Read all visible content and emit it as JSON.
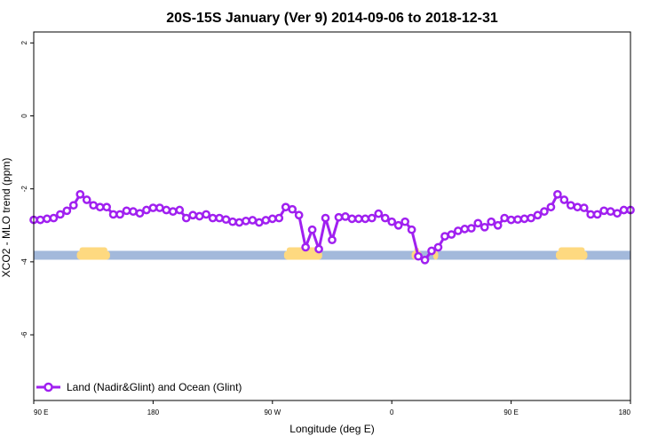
{
  "chart_data": {
    "type": "line",
    "title": "20S-15S January (Ver 9)   2014-09-06 to 2018-12-31",
    "xlabel": "Longitude (deg E)",
    "ylabel": "XCO2 - MLO trend (ppm)",
    "xlim": [
      90,
      450
    ],
    "ylim": [
      -7.8,
      2.3
    ],
    "x_ticks": [
      {
        "value": 90,
        "label": "90 E"
      },
      {
        "value": 162,
        "label": "180"
      },
      {
        "value": 234,
        "label": "90 W"
      },
      {
        "value": 306,
        "label": "0"
      },
      {
        "value": 378,
        "label": "90 E"
      },
      {
        "value": 450,
        "label": "180"
      }
    ],
    "y_ticks": [
      {
        "value": 2,
        "label": "2"
      },
      {
        "value": 0,
        "label": "0"
      },
      {
        "value": -2,
        "label": "-2"
      },
      {
        "value": -4,
        "label": "-4"
      },
      {
        "value": -6,
        "label": "-6"
      }
    ],
    "series": [
      {
        "name": "Land (Nadir&Glint) and Ocean (Glint)",
        "color": "#a020f0",
        "x": [
          90,
          94,
          98,
          102,
          106,
          110,
          114,
          118,
          122,
          126,
          130,
          134,
          138,
          142,
          146,
          150,
          154,
          158,
          162,
          166,
          170,
          174,
          178,
          182,
          186,
          190,
          194,
          198,
          202,
          206,
          210,
          214,
          218,
          222,
          226,
          230,
          234,
          238,
          242,
          246,
          250,
          254,
          258,
          262,
          266,
          270,
          274,
          278,
          282,
          286,
          290,
          294,
          298,
          302,
          306,
          310,
          314,
          318,
          322,
          326,
          330,
          334,
          338,
          342,
          346,
          350,
          354,
          358,
          362,
          366,
          370,
          374,
          378,
          382,
          386,
          390,
          394,
          398,
          402,
          406,
          410,
          414,
          418,
          422,
          426,
          430,
          434,
          438,
          442,
          446,
          450
        ],
        "y": [
          -2.85,
          -2.85,
          -2.82,
          -2.8,
          -2.7,
          -2.6,
          -2.45,
          -2.15,
          -2.3,
          -2.45,
          -2.5,
          -2.5,
          -2.7,
          -2.7,
          -2.6,
          -2.62,
          -2.67,
          -2.58,
          -2.52,
          -2.52,
          -2.58,
          -2.62,
          -2.58,
          -2.8,
          -2.72,
          -2.75,
          -2.7,
          -2.8,
          -2.8,
          -2.84,
          -2.9,
          -2.92,
          -2.88,
          -2.86,
          -2.92,
          -2.86,
          -2.82,
          -2.8,
          -2.5,
          -2.56,
          -2.72,
          -3.6,
          -3.12,
          -3.65,
          -2.8,
          -3.4,
          -2.78,
          -2.76,
          -2.82,
          -2.82,
          -2.82,
          -2.8,
          -2.68,
          -2.8,
          -2.9,
          -3.0,
          -2.9,
          -3.12,
          -3.85,
          -3.95,
          -3.7,
          -3.6,
          -3.3,
          -3.25,
          -3.15,
          -3.1,
          -3.08,
          -2.94,
          -3.05,
          -2.9,
          -3.0,
          -2.8,
          -2.85,
          -2.84,
          -2.82,
          -2.8,
          -2.72,
          -2.62,
          -2.5,
          -2.15,
          -2.3,
          -2.45,
          -2.5,
          -2.52,
          -2.7,
          -2.7,
          -2.6,
          -2.62,
          -2.67,
          -2.58,
          -2.58
        ]
      }
    ],
    "surface_band": {
      "y": -3.82,
      "ocean_color": "#a3b9db",
      "land_color": "#fed980",
      "land_ranges": [
        [
          116,
          136
        ],
        [
          241,
          264
        ],
        [
          318,
          324
        ],
        [
          331,
          334
        ],
        [
          405,
          424
        ]
      ]
    },
    "legend": {
      "position": "bottom-left"
    },
    "grid": false
  }
}
